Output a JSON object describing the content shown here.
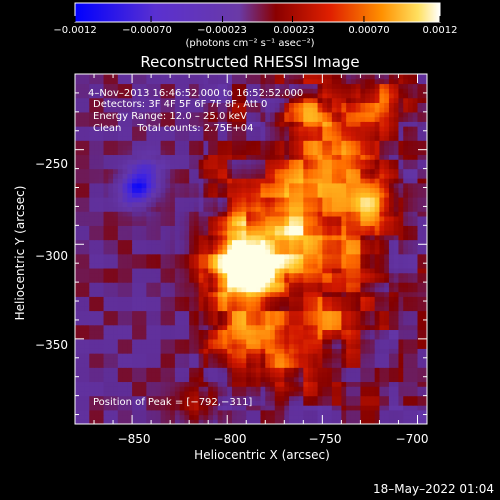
{
  "chart_data": {
    "type": "heatmap",
    "title": "Reconstructed RHESSI Image",
    "xlabel": "Heliocentric X (arcsec)",
    "ylabel": "Heliocentric Y (arcsec)",
    "xlim": [
      -880,
      -695
    ],
    "ylim": [
      -395,
      -210
    ],
    "x_ticks": [
      -850,
      -800,
      -750,
      -700
    ],
    "y_ticks": [
      -250,
      -300,
      -350
    ],
    "x_tick_labels": [
      "−850",
      "−800",
      "−750",
      "−700"
    ],
    "y_tick_labels": [
      "−250",
      "−300",
      "−350"
    ],
    "colorbar": {
      "min": -0.0012,
      "max": 0.0012,
      "ticks": [
        -0.0012,
        -0.0007,
        -0.00023,
        0.00023,
        0.0007,
        0.0012
      ],
      "tick_labels": [
        "−0.0012",
        "−0.00070",
        "−0.00023",
        "0.00023",
        "0.00070",
        "0.0012"
      ],
      "unit_label": "(photons cm⁻² s⁻¹ asec⁻²)"
    },
    "annotations": {
      "time_range": "4–Nov–2013 16:46:52.000 to 16:52:52.000",
      "detectors": "Detectors: 3F 4F 5F 6F 7F 8F, Att 0",
      "energy": "Energy Range: 12.0 – 25.0 keV",
      "clean": "Clean     Total counts: 2.75E+04",
      "peak": "Position of Peak = [−792,−311]"
    },
    "peak_position": [
      -792,
      -311
    ],
    "sources": [
      {
        "x": -792,
        "y": -311,
        "amp": 0.00118,
        "sigma": 11
      },
      {
        "x": -780,
        "y": -300,
        "amp": 0.0006,
        "sigma": 22
      },
      {
        "x": -760,
        "y": -290,
        "amp": 0.0005,
        "sigma": 18
      },
      {
        "x": -725,
        "y": -278,
        "amp": 0.00075,
        "sigma": 9
      },
      {
        "x": -745,
        "y": -255,
        "amp": 0.00065,
        "sigma": 14
      },
      {
        "x": -758,
        "y": -230,
        "amp": 0.0006,
        "sigma": 10
      },
      {
        "x": -722,
        "y": -225,
        "amp": 0.0005,
        "sigma": 10
      },
      {
        "x": -790,
        "y": -345,
        "amp": 0.0006,
        "sigma": 12
      },
      {
        "x": -770,
        "y": -365,
        "amp": 0.00055,
        "sigma": 9
      },
      {
        "x": -745,
        "y": -340,
        "amp": 0.00045,
        "sigma": 11
      },
      {
        "x": -730,
        "y": -310,
        "amp": 0.0004,
        "sigma": 12
      },
      {
        "x": -815,
        "y": -385,
        "amp": 0.00035,
        "sigma": 8
      },
      {
        "x": -848,
        "y": -270,
        "amp": -0.0009,
        "sigma": 6
      },
      {
        "x": -842,
        "y": -262,
        "amp": -0.0006,
        "sigma": 6
      }
    ]
  },
  "footer": {
    "timestamp": "18–May–2022 01:04"
  },
  "colors": {
    "background": "#000000",
    "foreground": "#ffffff"
  }
}
